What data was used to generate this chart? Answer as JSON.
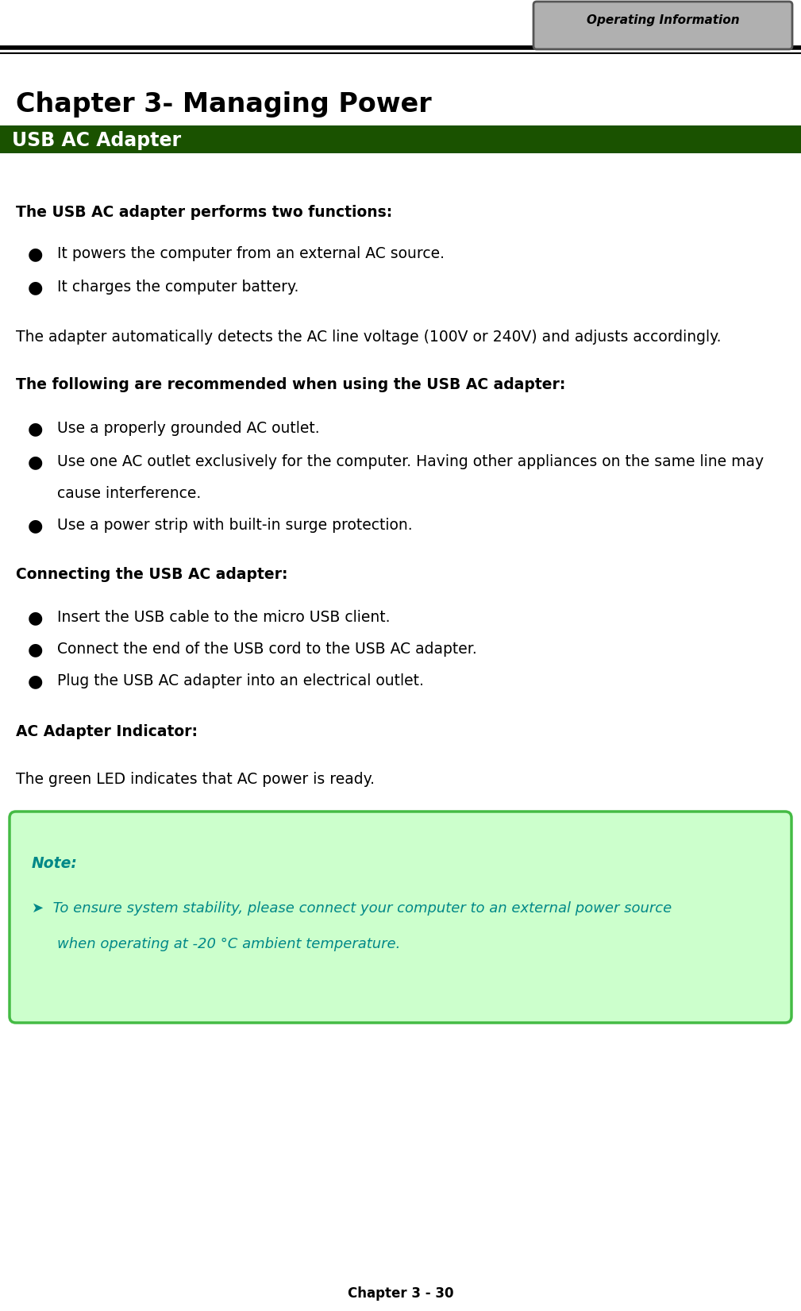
{
  "page_title_tab": "Operating Information",
  "chapter_title": "Chapter 3- Managing Power",
  "section_header": "USB AC Adapter",
  "section_header_bg": "#1a5200",
  "section_header_color": "#ffffff",
  "intro_bold": "The USB AC adapter performs two functions:",
  "bullet_intro": [
    "It powers the computer from an external AC source.",
    "It charges the computer battery."
  ],
  "para1": "The adapter automatically detects the AC line voltage (100V or 240V) and adjusts accordingly.",
  "section2_bold": "The following are recommended when using the USB AC adapter:",
  "bullet2_line1": "Use a properly grounded AC outlet.",
  "bullet2_line2a": "Use one AC outlet exclusively for the computer. Having other appliances on the same line may",
  "bullet2_line2b": "cause interference.",
  "bullet2_line3": "Use a power strip with built-in surge protection.",
  "section3_bold": "Connecting the USB AC adapter:",
  "bullet3": [
    "Insert the USB cable to the micro USB client.",
    "Connect the end of the USB cord to the USB AC adapter.",
    "Plug the USB AC adapter into an electrical outlet."
  ],
  "section4_bold": "AC Adapter Indicator:",
  "para4": "The green LED indicates that AC power is ready.",
  "note_label": "Note:",
  "note_line1": "➤  To ensure system stability, please connect your computer to an external power source",
  "note_line2": "    when operating at -20 °C ambient temperature.",
  "note_box_bg": "#ccffcc",
  "note_box_border": "#44bb44",
  "note_text_color": "#008888",
  "footer": "Chapter 3 - 30",
  "bg_color": "#ffffff",
  "text_color": "#000000",
  "header_tab_bg": "#b0b0b0",
  "header_tab_border": "#555555"
}
